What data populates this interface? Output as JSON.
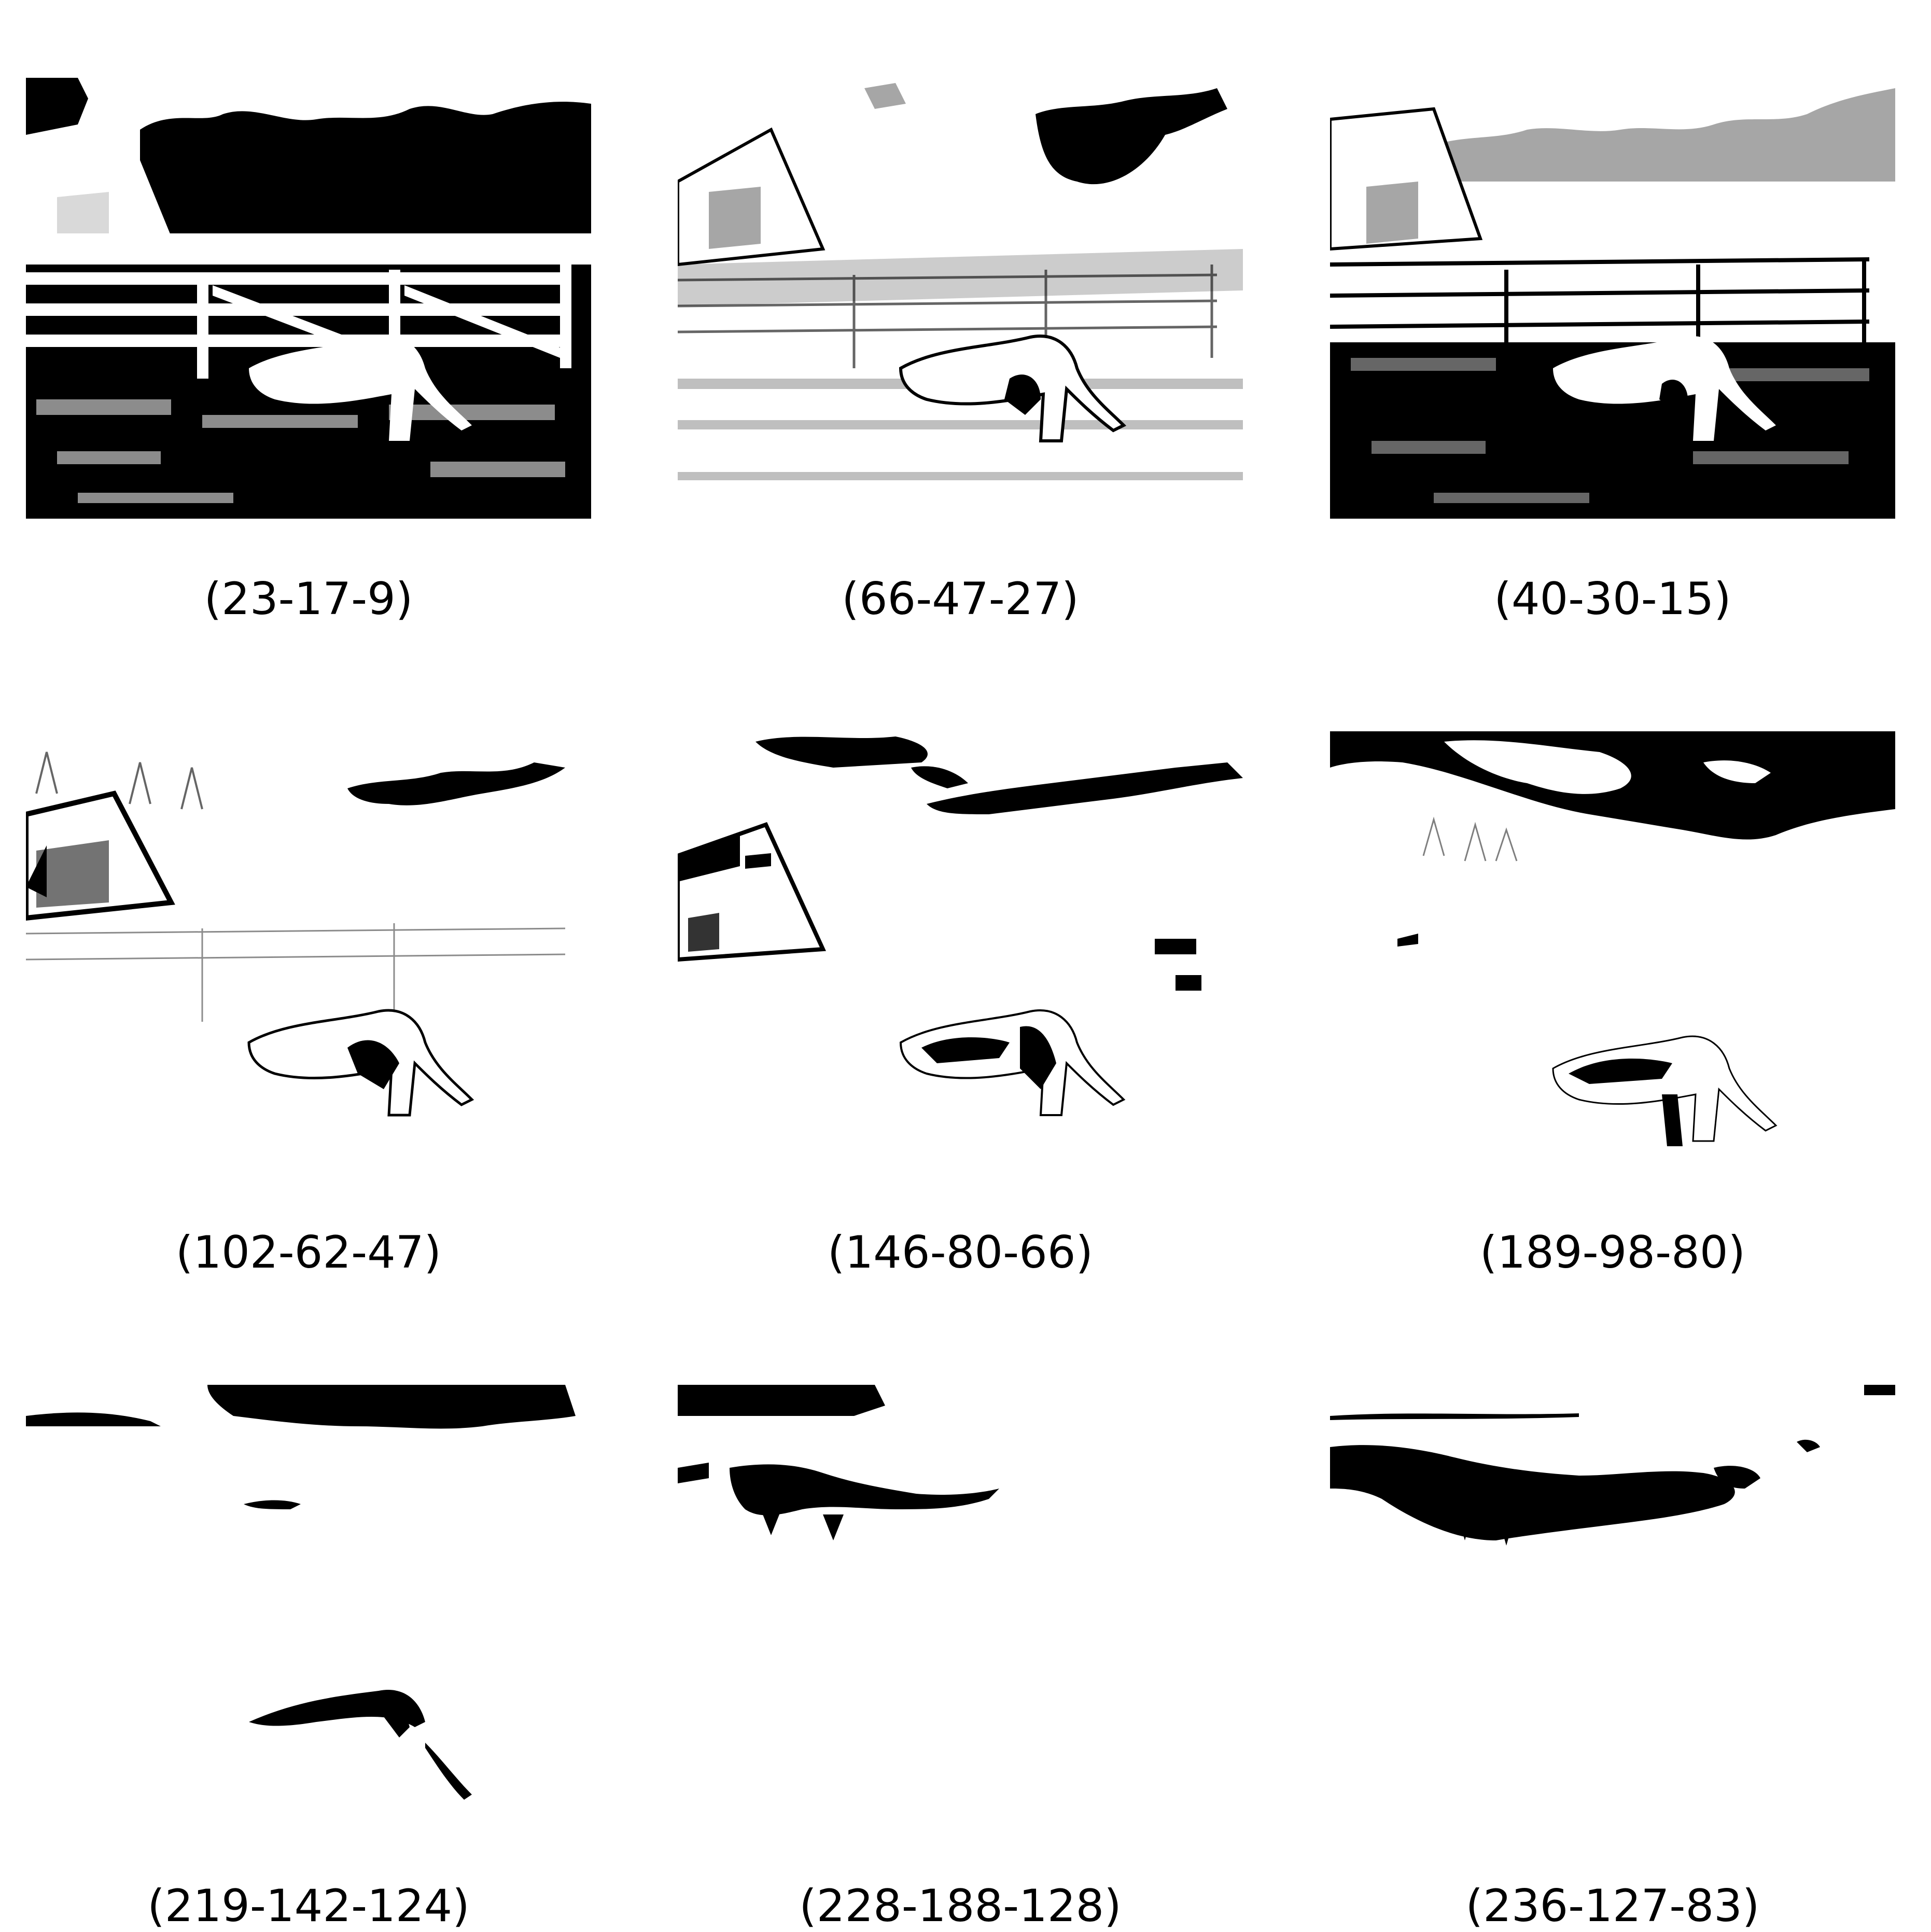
{
  "panels": [
    {
      "label": "(23-17-9)"
    },
    {
      "label": "(66-47-27)"
    },
    {
      "label": "(40-30-15)"
    },
    {
      "label": "(102-62-47)"
    },
    {
      "label": "(146-80-66)"
    },
    {
      "label": "(189-98-80)"
    },
    {
      "label": "(219-142-124)"
    },
    {
      "label": "(228-188-128)"
    },
    {
      "label": "(236-127-83)"
    }
  ],
  "colors": {
    "foreground": "#000000",
    "background": "#ffffff"
  }
}
